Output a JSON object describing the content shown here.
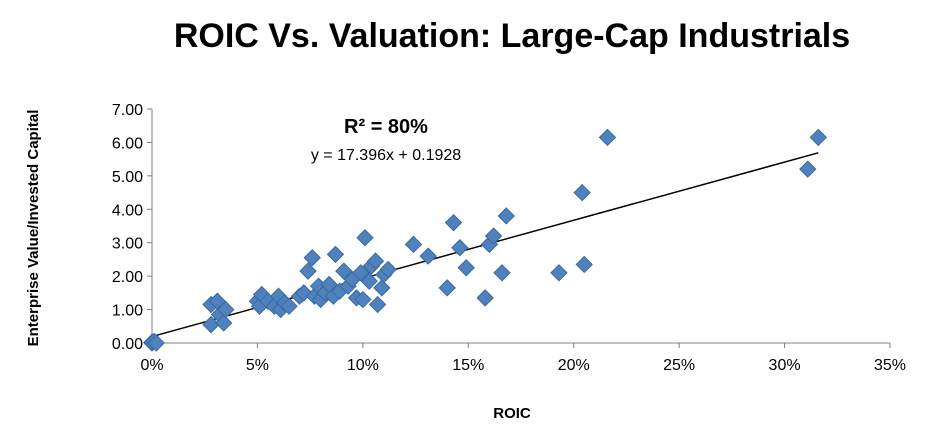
{
  "chart_data": {
    "type": "scatter",
    "title": "ROIC Vs. Valuation: Large-Cap Industrials",
    "xlabel": "ROIC",
    "ylabel": "Enterprise Value/Invested Capital",
    "xlim": [
      0,
      0.35
    ],
    "ylim": [
      0,
      7
    ],
    "x_tick_labels": [
      "0%",
      "5%",
      "10%",
      "15%",
      "20%",
      "25%",
      "30%",
      "35%"
    ],
    "y_tick_labels": [
      "0.00",
      "1.00",
      "2.00",
      "3.00",
      "4.00",
      "5.00",
      "6.00",
      "7.00"
    ],
    "grid": false,
    "legend": "none",
    "marker": "diamond",
    "marker_color": "#4f81bd",
    "annotations": {
      "r_squared": "R² = 80%",
      "equation": "y = 17.396x + 0.1928"
    },
    "trendline": {
      "slope": 17.396,
      "intercept": 0.1928,
      "x_range": [
        0,
        0.316
      ]
    },
    "points": [
      [
        0.0,
        0.0
      ],
      [
        0.0,
        0.02
      ],
      [
        0.001,
        0.05
      ],
      [
        0.002,
        0.0
      ],
      [
        0.028,
        0.55
      ],
      [
        0.028,
        1.15
      ],
      [
        0.031,
        1.25
      ],
      [
        0.032,
        0.85
      ],
      [
        0.034,
        0.6
      ],
      [
        0.035,
        1.0
      ],
      [
        0.05,
        1.25
      ],
      [
        0.051,
        1.1
      ],
      [
        0.052,
        1.45
      ],
      [
        0.055,
        1.25
      ],
      [
        0.058,
        1.1
      ],
      [
        0.06,
        1.4
      ],
      [
        0.061,
        1.0
      ],
      [
        0.063,
        1.2
      ],
      [
        0.065,
        1.1
      ],
      [
        0.07,
        1.4
      ],
      [
        0.072,
        1.5
      ],
      [
        0.074,
        2.15
      ],
      [
        0.076,
        2.55
      ],
      [
        0.077,
        1.4
      ],
      [
        0.079,
        1.7
      ],
      [
        0.08,
        1.3
      ],
      [
        0.082,
        1.5
      ],
      [
        0.084,
        1.75
      ],
      [
        0.086,
        1.4
      ],
      [
        0.087,
        2.65
      ],
      [
        0.089,
        1.55
      ],
      [
        0.091,
        2.15
      ],
      [
        0.093,
        1.7
      ],
      [
        0.095,
        1.9
      ],
      [
        0.097,
        1.35
      ],
      [
        0.099,
        2.1
      ],
      [
        0.1,
        1.3
      ],
      [
        0.101,
        3.15
      ],
      [
        0.103,
        1.85
      ],
      [
        0.104,
        2.3
      ],
      [
        0.106,
        2.45
      ],
      [
        0.107,
        1.15
      ],
      [
        0.109,
        1.65
      ],
      [
        0.11,
        2.05
      ],
      [
        0.112,
        2.2
      ],
      [
        0.124,
        2.95
      ],
      [
        0.131,
        2.6
      ],
      [
        0.14,
        1.65
      ],
      [
        0.143,
        3.6
      ],
      [
        0.146,
        2.85
      ],
      [
        0.149,
        2.25
      ],
      [
        0.158,
        1.35
      ],
      [
        0.16,
        2.95
      ],
      [
        0.162,
        3.2
      ],
      [
        0.166,
        2.1
      ],
      [
        0.168,
        3.8
      ],
      [
        0.193,
        2.1
      ],
      [
        0.204,
        4.5
      ],
      [
        0.205,
        2.35
      ],
      [
        0.216,
        6.15
      ],
      [
        0.311,
        5.2
      ],
      [
        0.316,
        6.15
      ]
    ]
  }
}
